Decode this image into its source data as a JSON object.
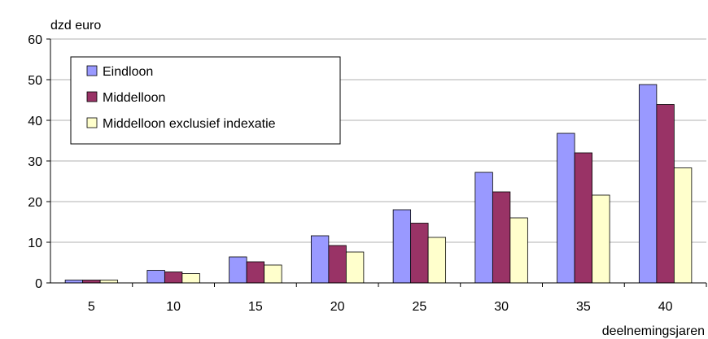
{
  "chart_data": {
    "type": "bar",
    "ylabel": "dzd euro",
    "xlabel": "deelnemingsjaren",
    "categories": [
      "5",
      "10",
      "15",
      "20",
      "25",
      "30",
      "35",
      "40"
    ],
    "ylim": [
      0,
      60
    ],
    "yticks": [
      0,
      10,
      20,
      30,
      40,
      50,
      60
    ],
    "grid": true,
    "legend_position": "top-left",
    "series": [
      {
        "name": "Eindloon",
        "color": "#9999ff",
        "values": [
          0.7,
          3.1,
          6.4,
          11.6,
          18.0,
          27.2,
          36.8,
          48.8
        ]
      },
      {
        "name": "Middelloon",
        "color": "#993366",
        "values": [
          0.7,
          2.7,
          5.2,
          9.2,
          14.7,
          22.4,
          32.0,
          43.9
        ]
      },
      {
        "name": "Middelloon exclusief indexatie",
        "color": "#ffffcc",
        "values": [
          0.7,
          2.3,
          4.4,
          7.6,
          11.2,
          16.0,
          21.6,
          28.3
        ]
      }
    ]
  }
}
